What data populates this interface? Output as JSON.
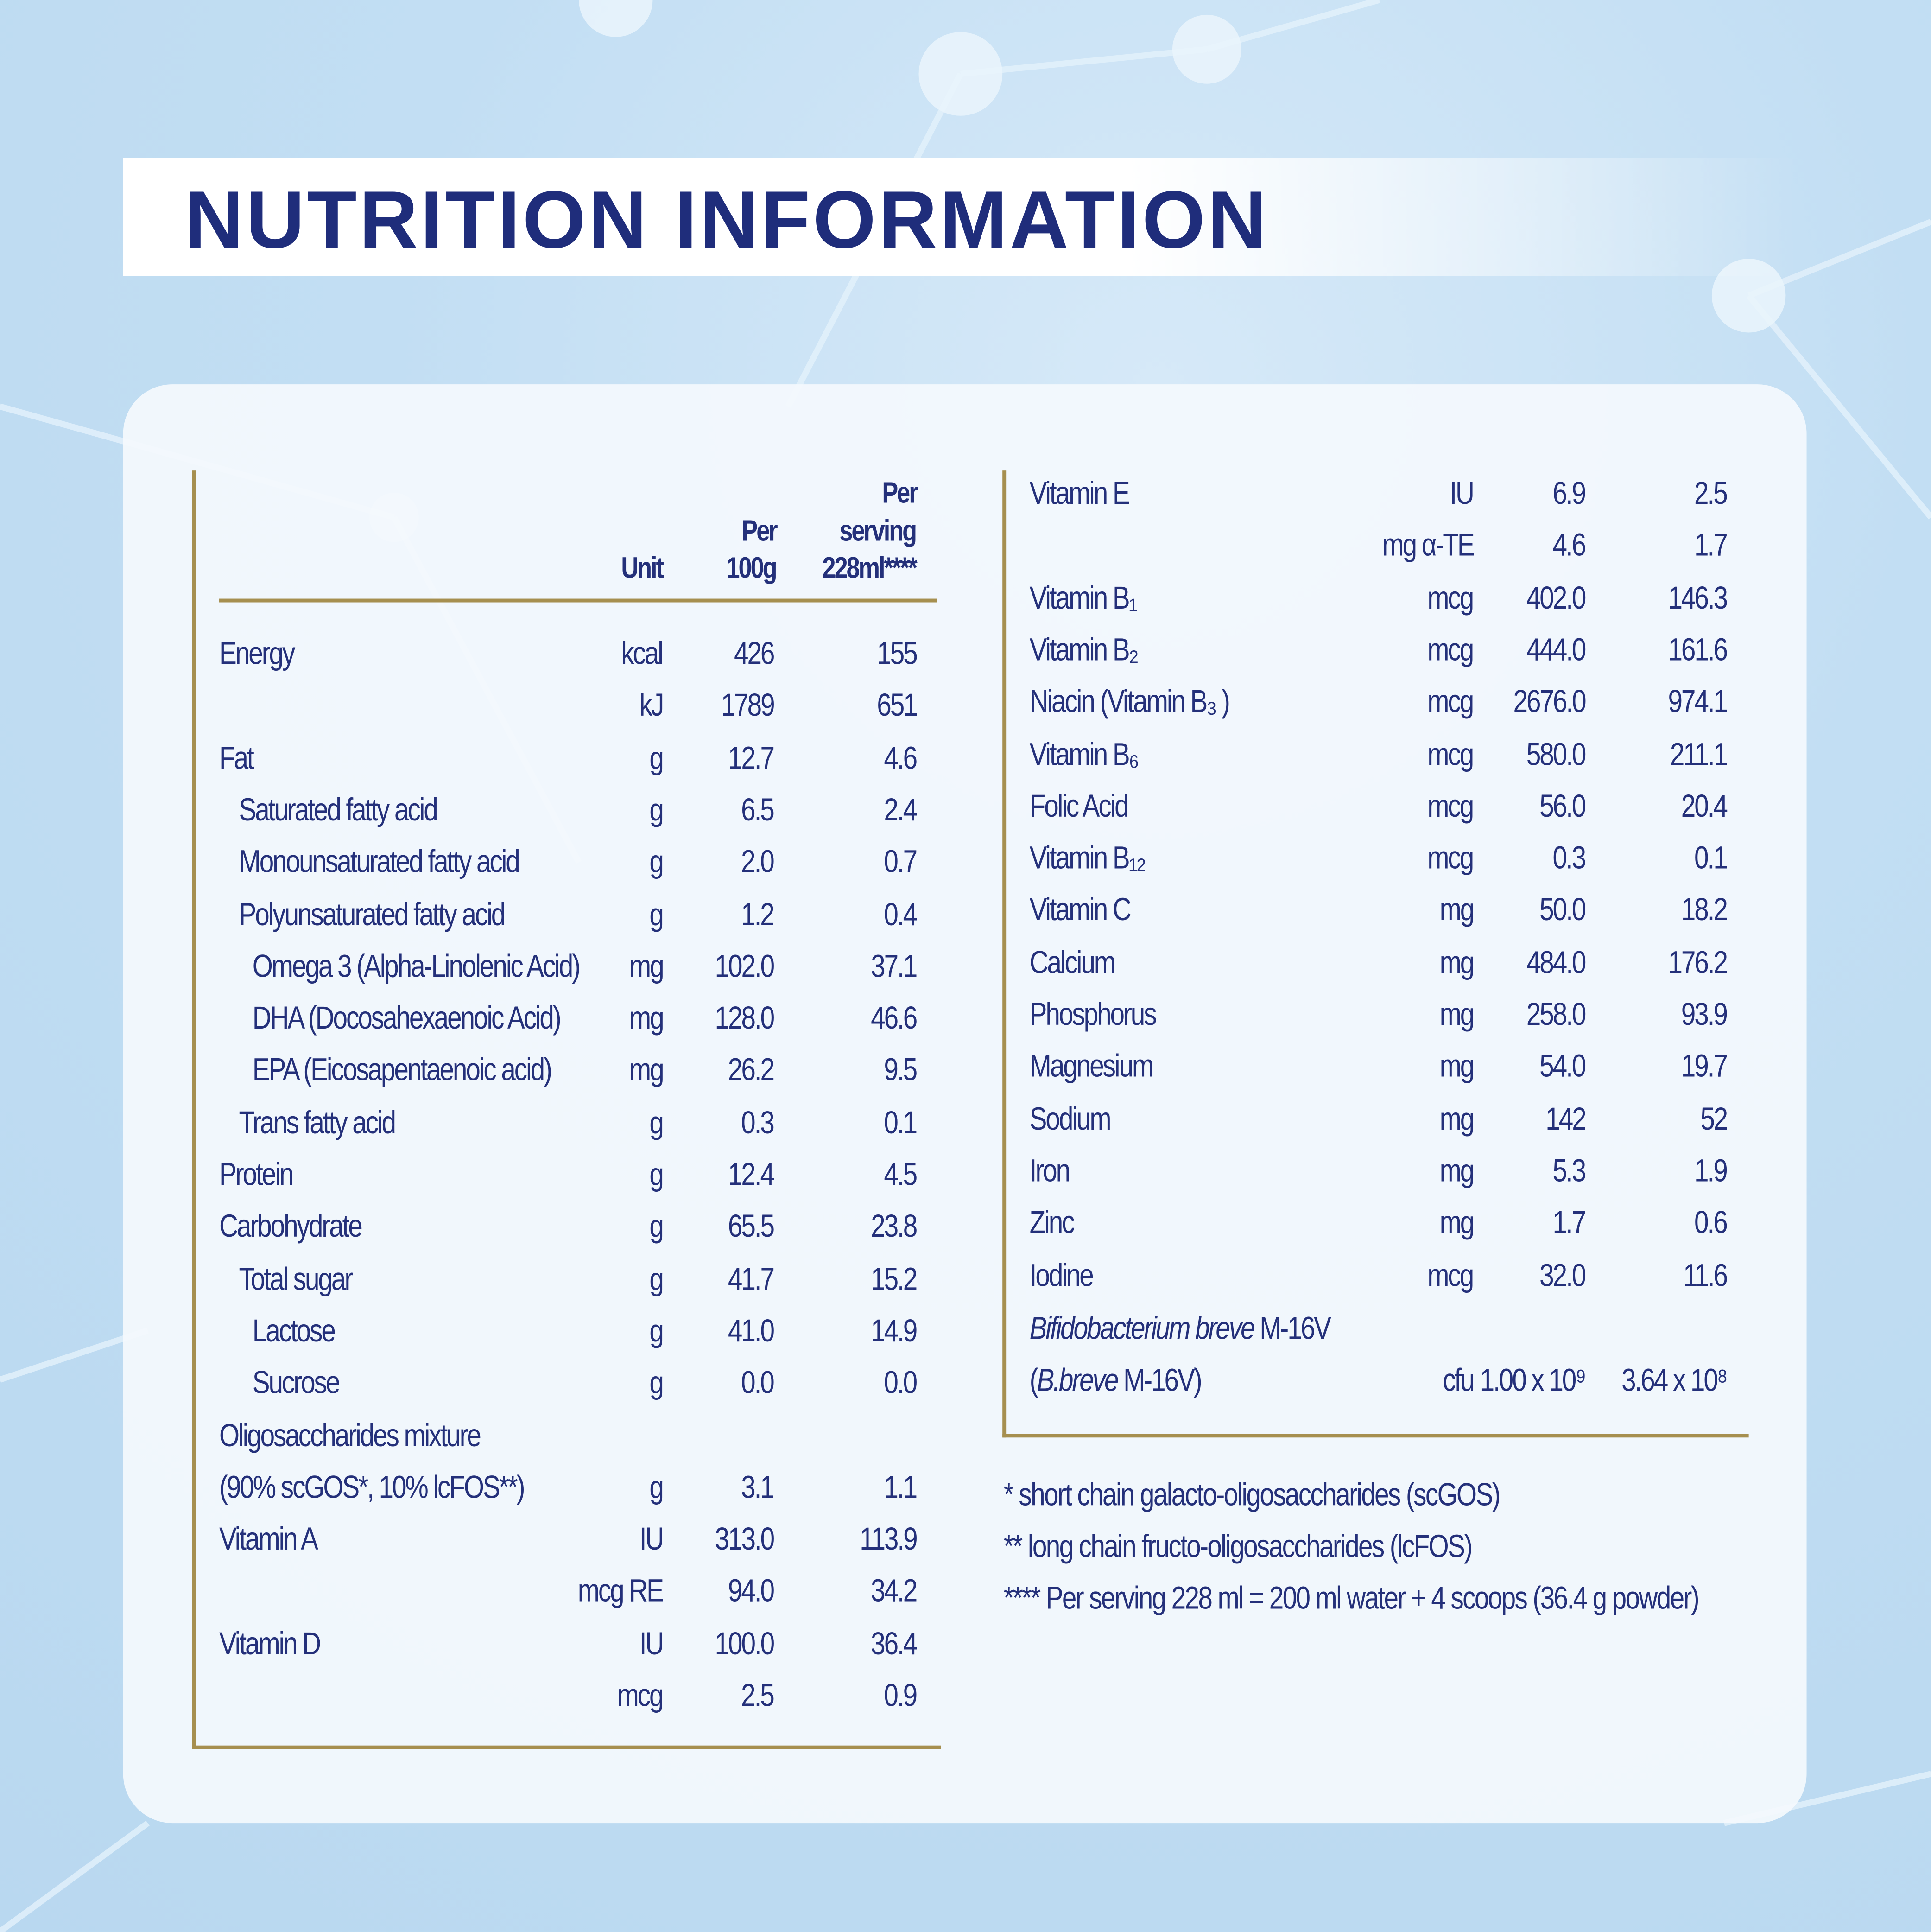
{
  "title": "NUTRITION INFORMATION",
  "colors": {
    "text": "#24307a",
    "rule": "#a68f4f",
    "background": "#bcdaf1"
  },
  "left_table": {
    "headers": {
      "unit": "Unit",
      "per100_line1": "Per",
      "per100_line2": "100g",
      "serving_line1": "Per",
      "serving_line2": "serving",
      "serving_line3": "228ml****"
    },
    "rows": [
      {
        "name": "Energy",
        "indent": 0,
        "unit": "kcal",
        "per100g": "426",
        "per_serving": "155"
      },
      {
        "name": "",
        "indent": 0,
        "unit": "kJ",
        "per100g": "1789",
        "per_serving": "651"
      },
      {
        "name": "Fat",
        "indent": 0,
        "unit": "g",
        "per100g": "12.7",
        "per_serving": "4.6"
      },
      {
        "name": "Saturated fatty acid",
        "indent": 1,
        "unit": "g",
        "per100g": "6.5",
        "per_serving": "2.4"
      },
      {
        "name": "Monounsaturated fatty acid",
        "indent": 1,
        "unit": "g",
        "per100g": "2.0",
        "per_serving": "0.7"
      },
      {
        "name": "Polyunsaturated fatty acid",
        "indent": 1,
        "unit": "g",
        "per100g": "1.2",
        "per_serving": "0.4"
      },
      {
        "name": "Omega 3 (Alpha-Linolenic Acid)",
        "indent": 2,
        "unit": "mg",
        "per100g": "102.0",
        "per_serving": "37.1"
      },
      {
        "name": "DHA (Docosahexaenoic Acid)",
        "indent": 2,
        "unit": "mg",
        "per100g": "128.0",
        "per_serving": "46.6"
      },
      {
        "name": "EPA (Eicosapentaenoic acid)",
        "indent": 2,
        "unit": "mg",
        "per100g": "26.2",
        "per_serving": "9.5"
      },
      {
        "name": "Trans fatty acid",
        "indent": 1,
        "unit": "g",
        "per100g": "0.3",
        "per_serving": "0.1"
      },
      {
        "name": "Protein",
        "indent": 0,
        "unit": "g",
        "per100g": "12.4",
        "per_serving": "4.5"
      },
      {
        "name": "Carbohydrate",
        "indent": 0,
        "unit": "g",
        "per100g": "65.5",
        "per_serving": "23.8"
      },
      {
        "name": "Total sugar",
        "indent": 1,
        "unit": "g",
        "per100g": "41.7",
        "per_serving": "15.2"
      },
      {
        "name": "Lactose",
        "indent": 2,
        "unit": "g",
        "per100g": "41.0",
        "per_serving": "14.9"
      },
      {
        "name": "Sucrose",
        "indent": 2,
        "unit": "g",
        "per100g": "0.0",
        "per_serving": "0.0"
      },
      {
        "name": "Oligosaccharides mixture",
        "indent": 0,
        "unit": "",
        "per100g": "",
        "per_serving": ""
      },
      {
        "name": "(90% scGOS*, 10% lcFOS**)",
        "indent": 0,
        "unit": "g",
        "per100g": "3.1",
        "per_serving": "1.1"
      },
      {
        "name": "Vitamin A",
        "indent": 0,
        "unit": "IU",
        "per100g": "313.0",
        "per_serving": "113.9"
      },
      {
        "name": "",
        "indent": 0,
        "unit": "mcg RE",
        "per100g": "94.0",
        "per_serving": "34.2"
      },
      {
        "name": "Vitamin D",
        "indent": 0,
        "unit": "IU",
        "per100g": "100.0",
        "per_serving": "36.4"
      },
      {
        "name": "",
        "indent": 0,
        "unit": "mcg",
        "per100g": "2.5",
        "per_serving": "0.9"
      }
    ]
  },
  "right_table": {
    "rows": [
      {
        "name": "Vitamin E",
        "unit": "IU",
        "per100g": "6.9",
        "per_serving": "2.5"
      },
      {
        "name": "",
        "unit": "mg α-TE",
        "per100g": "4.6",
        "per_serving": "1.7"
      },
      {
        "name": "Vitamin B₁",
        "unit": "mcg",
        "per100g": "402.0",
        "per_serving": "146.3"
      },
      {
        "name": "Vitamin B₂",
        "unit": "mcg",
        "per100g": "444.0",
        "per_serving": "161.6"
      },
      {
        "name": "Niacin (Vitamin B₃ )",
        "unit": "mcg",
        "per100g": "2676.0",
        "per_serving": "974.1"
      },
      {
        "name": "Vitamin B₆",
        "unit": "mcg",
        "per100g": "580.0",
        "per_serving": "211.1"
      },
      {
        "name": "Folic Acid",
        "unit": "mcg",
        "per100g": "56.0",
        "per_serving": "20.4"
      },
      {
        "name": "Vitamin B₁₂",
        "unit": "mcg",
        "per100g": "0.3",
        "per_serving": "0.1"
      },
      {
        "name": "Vitamin C",
        "unit": "mg",
        "per100g": "50.0",
        "per_serving": "18.2"
      },
      {
        "name": "Calcium",
        "unit": "mg",
        "per100g": "484.0",
        "per_serving": "176.2"
      },
      {
        "name": "Phosphorus",
        "unit": "mg",
        "per100g": "258.0",
        "per_serving": "93.9"
      },
      {
        "name": "Magnesium",
        "unit": "mg",
        "per100g": "54.0",
        "per_serving": "19.7"
      },
      {
        "name": "Sodium",
        "unit": "mg",
        "per100g": "142",
        "per_serving": "52"
      },
      {
        "name": "Iron",
        "unit": "mg",
        "per100g": "5.3",
        "per_serving": "1.9"
      },
      {
        "name": "Zinc",
        "unit": "mg",
        "per100g": "1.7",
        "per_serving": "0.6"
      },
      {
        "name": "Iodine",
        "unit": "mcg",
        "per100g": "32.0",
        "per_serving": "11.6"
      }
    ],
    "probiotic": {
      "name_italic": "Bifidobacterium breve",
      "name_suffix": " M-16V",
      "line2_open": "(",
      "line2_italic": "B.breve",
      "line2_suffix": " M-16V)",
      "unit": "cfu",
      "per100g": "1.00 x 10⁹",
      "per_serving": "3.64 x 10⁸"
    }
  },
  "footnotes": [
    "* short chain galacto-oligosaccharides (scGOS)",
    "** long chain fructo-oligosaccharides (lcFOS)",
    "**** Per serving 228 ml = 200 ml water + 4 scoops (36.4 g powder)"
  ]
}
